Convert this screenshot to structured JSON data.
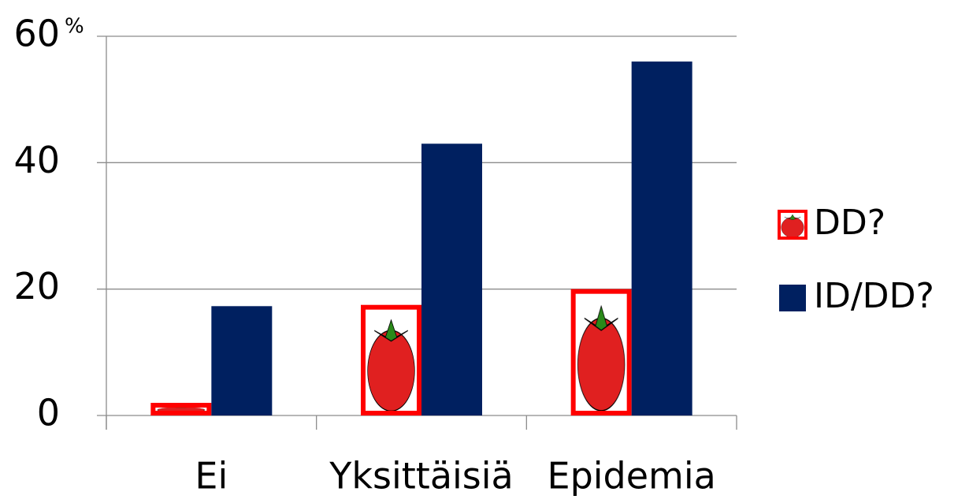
{
  "chart_data": {
    "type": "bar",
    "y_label": "%",
    "categories": [
      "Ei",
      "Yksittäisiä",
      "Epidemia"
    ],
    "series": [
      {
        "name": "DD?",
        "color": "#ff0000",
        "values": [
          2,
          17.5,
          20
        ]
      },
      {
        "name": "ID/DD?",
        "color": "#002060",
        "values": [
          17.3,
          43,
          56
        ]
      }
    ],
    "ylim": [
      0,
      60
    ],
    "yticks": [
      0,
      20,
      40,
      60
    ],
    "grid": true,
    "legend": "right"
  }
}
